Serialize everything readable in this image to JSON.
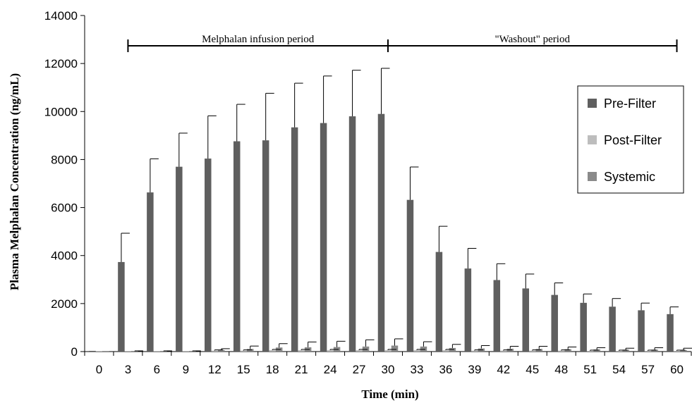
{
  "chart_data": {
    "type": "bar",
    "xlabel": "Time (min)",
    "ylabel": "Plasma Melphalan Concentration  (ng/mL)",
    "ylim": [
      0,
      14000
    ],
    "yticks": [
      "0",
      "2000",
      "4000",
      "6000",
      "8000",
      "10000",
      "12000",
      "14000"
    ],
    "categories": [
      "0",
      "3",
      "6",
      "9",
      "12",
      "15",
      "18",
      "21",
      "24",
      "27",
      "30",
      "33",
      "36",
      "39",
      "42",
      "45",
      "48",
      "51",
      "54",
      "57",
      "60"
    ],
    "series": [
      {
        "name": "Pre-Filter",
        "color": "#5f5f5f",
        "values": [
          30,
          3730,
          6630,
          7700,
          8040,
          8760,
          8800,
          9340,
          9520,
          9800,
          9900,
          6320,
          4150,
          3460,
          2980,
          2630,
          2360,
          2030,
          1870,
          1720,
          1560
        ],
        "error": [
          0,
          1200,
          1400,
          1400,
          1780,
          1540,
          1960,
          1840,
          1960,
          1920,
          1900,
          1370,
          1070,
          840,
          680,
          600,
          500,
          370,
          340,
          300,
          300
        ]
      },
      {
        "name": "Post-Filter",
        "color": "#bdbdbd",
        "values": [
          0,
          0,
          0,
          0,
          40,
          40,
          60,
          60,
          60,
          60,
          60,
          60,
          60,
          40,
          40,
          40,
          40,
          30,
          30,
          30,
          30
        ],
        "error": [
          0,
          0,
          0,
          0,
          30,
          30,
          30,
          30,
          30,
          30,
          30,
          30,
          30,
          30,
          30,
          30,
          30,
          30,
          30,
          30,
          30
        ]
      },
      {
        "name": "Systemic",
        "color": "#8a8a8a",
        "values": [
          0,
          20,
          20,
          20,
          60,
          110,
          170,
          180,
          190,
          210,
          250,
          210,
          150,
          130,
          120,
          110,
          100,
          90,
          80,
          80,
          60
        ],
        "error": [
          0,
          10,
          10,
          10,
          60,
          120,
          160,
          220,
          240,
          280,
          280,
          200,
          150,
          120,
          100,
          110,
          90,
          70,
          60,
          80,
          80
        ]
      }
    ],
    "legend_position": "right",
    "grid": false,
    "annotations": [
      {
        "text": "Melphalan infusion period",
        "from": "3",
        "to": "30"
      },
      {
        "text": "\"Washout\" period",
        "from": "30",
        "to": "60"
      }
    ]
  }
}
